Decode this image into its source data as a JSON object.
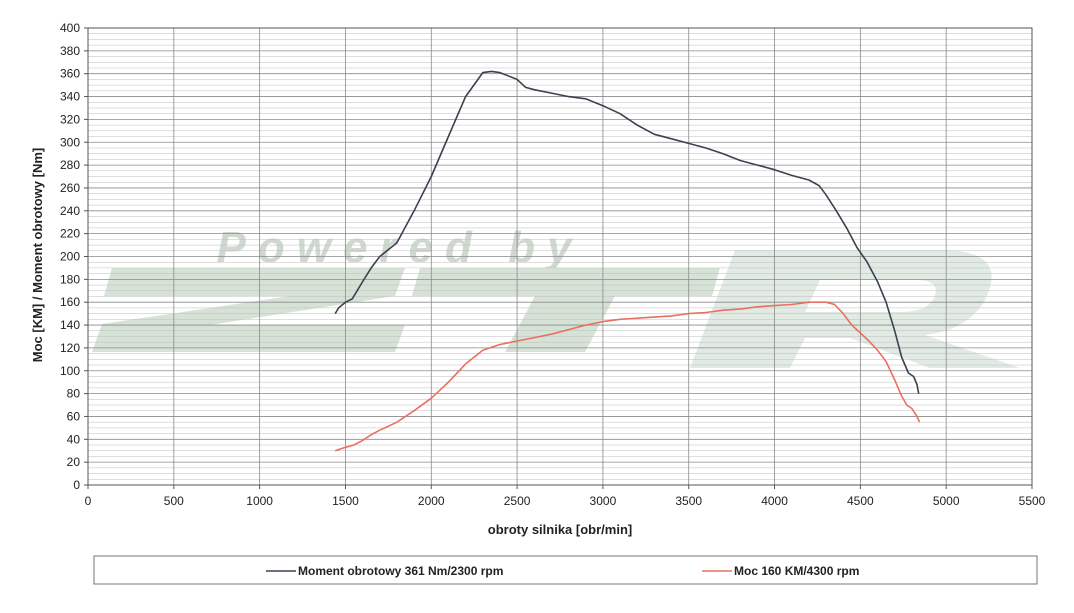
{
  "chart_data": {
    "type": "line",
    "title": "",
    "xlabel": "obroty silnika [obr/min]",
    "ylabel": "Moc [KM] / Moment obrotowy [Nm]",
    "xlim": [
      0,
      5500
    ],
    "ylim": [
      0,
      400
    ],
    "x_ticks": [
      "0",
      "500",
      "1000",
      "1500",
      "2000",
      "2500",
      "3000",
      "3500",
      "4000",
      "4500",
      "5000",
      "5500"
    ],
    "y_ticks": [
      "0",
      "20",
      "40",
      "60",
      "80",
      "100",
      "120",
      "140",
      "160",
      "180",
      "200",
      "220",
      "240",
      "260",
      "280",
      "300",
      "320",
      "340",
      "360",
      "380",
      "400"
    ],
    "grid": true,
    "legend_position": "bottom",
    "watermark": "Powered by ZTR",
    "series": [
      {
        "name": "Moment obrotowy 361 Nm/2300 rpm",
        "color": "#3a4150",
        "points": [
          [
            1440,
            150
          ],
          [
            1460,
            155
          ],
          [
            1500,
            160
          ],
          [
            1540,
            163
          ],
          [
            1600,
            178
          ],
          [
            1650,
            190
          ],
          [
            1700,
            200
          ],
          [
            1800,
            212
          ],
          [
            1900,
            240
          ],
          [
            2000,
            270
          ],
          [
            2100,
            305
          ],
          [
            2200,
            340
          ],
          [
            2300,
            361
          ],
          [
            2350,
            362
          ],
          [
            2400,
            361
          ],
          [
            2500,
            355
          ],
          [
            2550,
            348
          ],
          [
            2600,
            346
          ],
          [
            2700,
            343
          ],
          [
            2800,
            340
          ],
          [
            2900,
            338
          ],
          [
            3000,
            332
          ],
          [
            3100,
            325
          ],
          [
            3200,
            315
          ],
          [
            3300,
            307
          ],
          [
            3400,
            303
          ],
          [
            3500,
            299
          ],
          [
            3600,
            295
          ],
          [
            3700,
            290
          ],
          [
            3800,
            284
          ],
          [
            3900,
            280
          ],
          [
            4000,
            276
          ],
          [
            4100,
            271
          ],
          [
            4200,
            267
          ],
          [
            4260,
            262
          ],
          [
            4300,
            254
          ],
          [
            4360,
            240
          ],
          [
            4420,
            225
          ],
          [
            4480,
            208
          ],
          [
            4540,
            195
          ],
          [
            4600,
            178
          ],
          [
            4650,
            160
          ],
          [
            4700,
            135
          ],
          [
            4740,
            112
          ],
          [
            4780,
            98
          ],
          [
            4810,
            95
          ],
          [
            4830,
            88
          ],
          [
            4840,
            80
          ]
        ]
      },
      {
        "name": "Moc 160 KM/4300 rpm",
        "color": "#e87060",
        "points": [
          [
            1440,
            30
          ],
          [
            1500,
            33
          ],
          [
            1550,
            35
          ],
          [
            1600,
            39
          ],
          [
            1650,
            44
          ],
          [
            1700,
            48
          ],
          [
            1800,
            55
          ],
          [
            1900,
            65
          ],
          [
            2000,
            76
          ],
          [
            2100,
            90
          ],
          [
            2200,
            106
          ],
          [
            2300,
            118
          ],
          [
            2400,
            123
          ],
          [
            2500,
            126
          ],
          [
            2600,
            129
          ],
          [
            2700,
            132
          ],
          [
            2800,
            136
          ],
          [
            2900,
            140
          ],
          [
            3000,
            143
          ],
          [
            3100,
            145
          ],
          [
            3200,
            146
          ],
          [
            3300,
            147
          ],
          [
            3400,
            148
          ],
          [
            3500,
            150
          ],
          [
            3600,
            151
          ],
          [
            3700,
            153
          ],
          [
            3800,
            154
          ],
          [
            3900,
            156
          ],
          [
            4000,
            157
          ],
          [
            4100,
            158
          ],
          [
            4200,
            160
          ],
          [
            4300,
            160
          ],
          [
            4350,
            158
          ],
          [
            4400,
            150
          ],
          [
            4450,
            140
          ],
          [
            4500,
            133
          ],
          [
            4550,
            126
          ],
          [
            4600,
            118
          ],
          [
            4650,
            108
          ],
          [
            4700,
            92
          ],
          [
            4740,
            78
          ],
          [
            4770,
            70
          ],
          [
            4800,
            67
          ],
          [
            4830,
            60
          ],
          [
            4845,
            55
          ]
        ]
      }
    ]
  }
}
